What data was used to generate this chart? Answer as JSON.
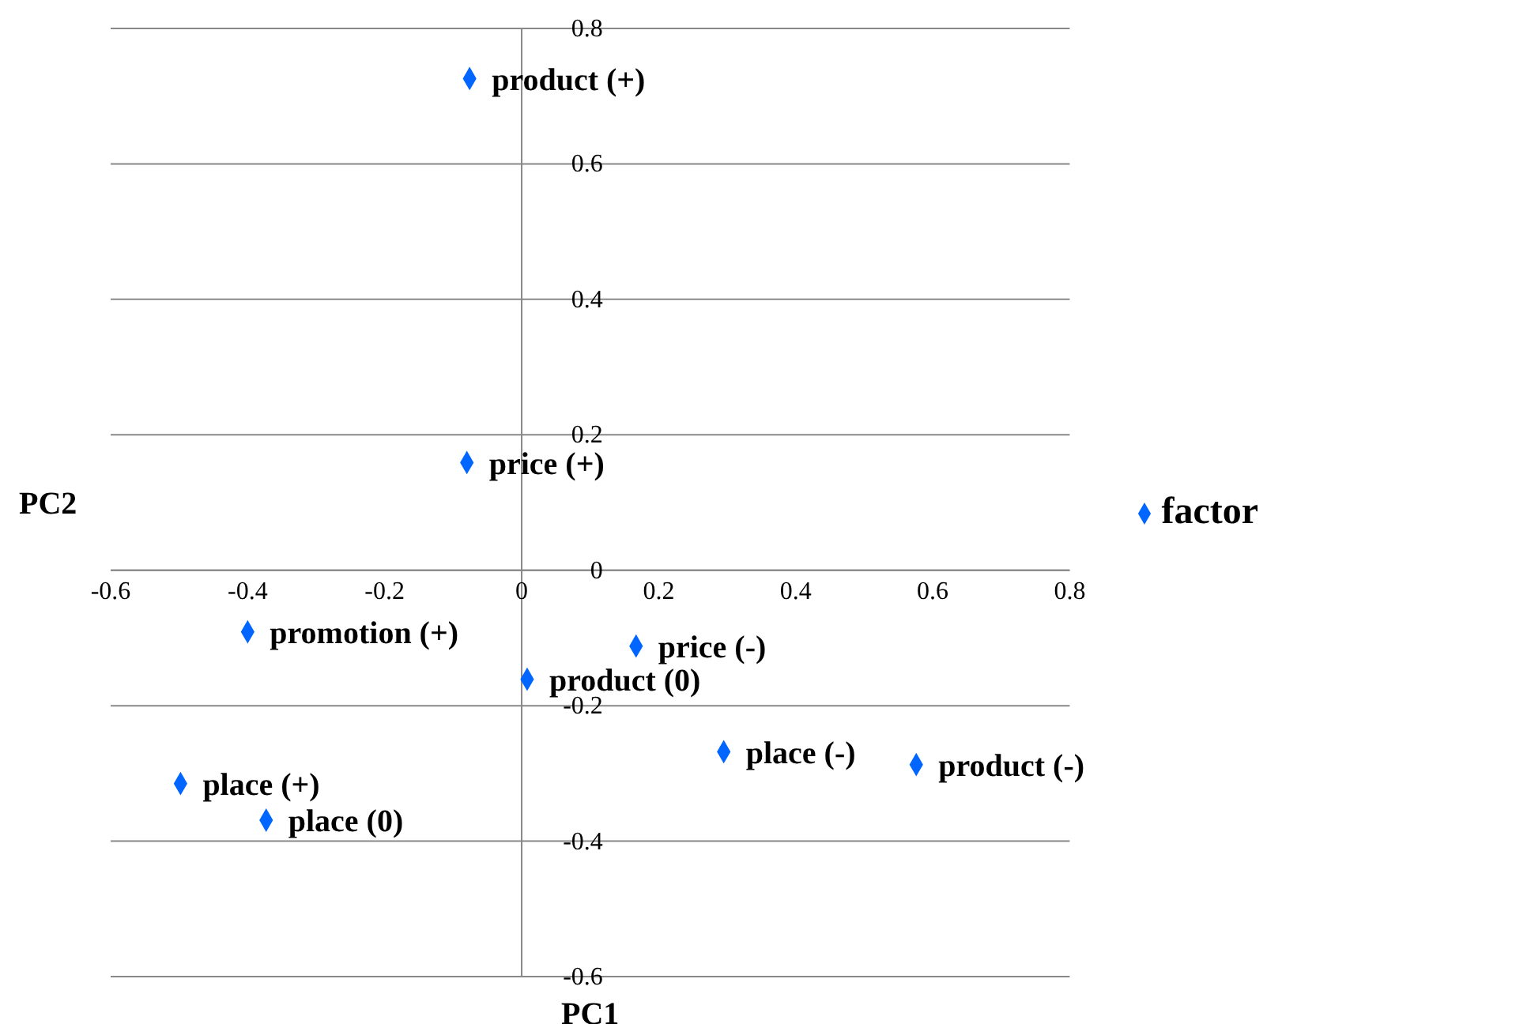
{
  "chart_data": {
    "type": "scatter",
    "xlabel": "PC1",
    "ylabel": "PC2",
    "x": [
      -0.076,
      -0.08,
      -0.4,
      0.167,
      0.008,
      -0.498,
      -0.373,
      0.295,
      0.576
    ],
    "series": [
      {
        "name": "factor",
        "color": "#0066ff",
        "values": [
          0.726,
          0.159,
          -0.091,
          -0.112,
          -0.161,
          -0.315,
          -0.369,
          -0.268,
          -0.287
        ]
      }
    ],
    "annotations": [
      {
        "text": "product (+)",
        "x": -0.076,
        "y": 0.726
      },
      {
        "text": "price (+)",
        "x": -0.08,
        "y": 0.159
      },
      {
        "text": "promotion (+)",
        "x": -0.4,
        "y": -0.091
      },
      {
        "text": "price (-)",
        "x": 0.167,
        "y": -0.112
      },
      {
        "text": "product (0)",
        "x": 0.008,
        "y": -0.161
      },
      {
        "text": "place (+)",
        "x": -0.498,
        "y": -0.315
      },
      {
        "text": "place (0)",
        "x": -0.373,
        "y": -0.369
      },
      {
        "text": "place (-)",
        "x": 0.295,
        "y": -0.268
      },
      {
        "text": "product (-)",
        "x": 0.576,
        "y": -0.287
      }
    ],
    "xlim": [
      -0.6,
      0.8
    ],
    "xticks": [
      -0.6,
      -0.4,
      -0.2,
      0,
      0.2,
      0.4,
      0.6,
      0.8
    ],
    "ylim": [
      -0.6,
      0.8
    ],
    "yticks": [
      -0.6,
      -0.4,
      -0.2,
      0,
      0.2,
      0.4,
      0.6,
      0.8
    ],
    "grid": "y",
    "legend": "right",
    "marker": "diamond"
  }
}
